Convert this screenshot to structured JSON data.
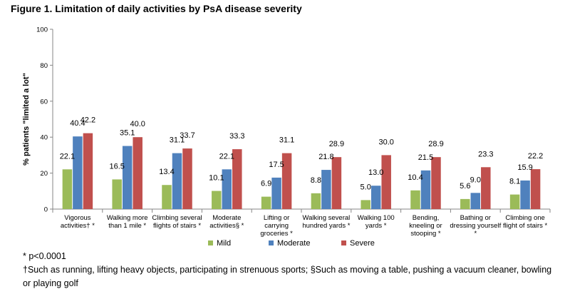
{
  "chart_data": {
    "type": "bar",
    "title": "Figure 1. Limitation of daily activities by PsA disease severity",
    "ylabel": "% patients \"limited a lot\"",
    "xlabel": "",
    "ylim": [
      0,
      100
    ],
    "yticks": [
      0,
      20,
      40,
      60,
      80,
      100
    ],
    "grid": false,
    "legend_position": "bottom",
    "categories": [
      [
        "Vigorous",
        "activities† *"
      ],
      [
        "Walking more",
        "than 1 mile *"
      ],
      [
        "Climbing several",
        "flights of stairs *"
      ],
      [
        "Moderate",
        "activities§ *"
      ],
      [
        "Lifting or",
        "carrying",
        "groceries *"
      ],
      [
        "Walking several",
        "hundred yards *"
      ],
      [
        "Walking 100",
        "yards *"
      ],
      [
        "Bending,",
        "kneeling or",
        "stooping *"
      ],
      [
        "Bathing or",
        "dressing yourself",
        "*"
      ],
      [
        "Climbing one",
        "flight of stairs *"
      ]
    ],
    "series": [
      {
        "name": "Mild",
        "color": "#9bbb59",
        "values": [
          22.1,
          16.5,
          13.4,
          10.1,
          6.9,
          8.8,
          5.0,
          10.4,
          5.6,
          8.1
        ],
        "labels": [
          "22.1",
          "16.5",
          "13.4",
          "10.1",
          "6.9",
          "8.8",
          "5.0",
          "10.4",
          "5.6",
          "8.1"
        ]
      },
      {
        "name": "Moderate",
        "color": "#4f81bd",
        "values": [
          40.4,
          35.1,
          31.1,
          22.1,
          17.5,
          21.8,
          13.0,
          21.5,
          9.0,
          15.9
        ],
        "labels": [
          "40.4",
          "35.1",
          "31.1",
          "22.1",
          "17.5",
          "21.8",
          "13.0",
          "21.5",
          "9.0",
          "15.9"
        ]
      },
      {
        "name": "Severe",
        "color": "#c0504d",
        "values": [
          42.2,
          40.0,
          33.7,
          33.3,
          31.1,
          28.9,
          30.0,
          28.9,
          23.3,
          22.2
        ],
        "labels": [
          "42.2",
          "40.0",
          "33.7",
          "33.3",
          "31.1",
          "28.9",
          "30.0",
          "28.9",
          "23.3",
          "22.2"
        ]
      }
    ]
  },
  "notes": {
    "pvalue": "* p<0.0001",
    "footnote": "†Such as running, lifting heavy objects, participating in strenuous sports; §Such as moving a table, pushing a vacuum cleaner, bowling or playing golf"
  }
}
